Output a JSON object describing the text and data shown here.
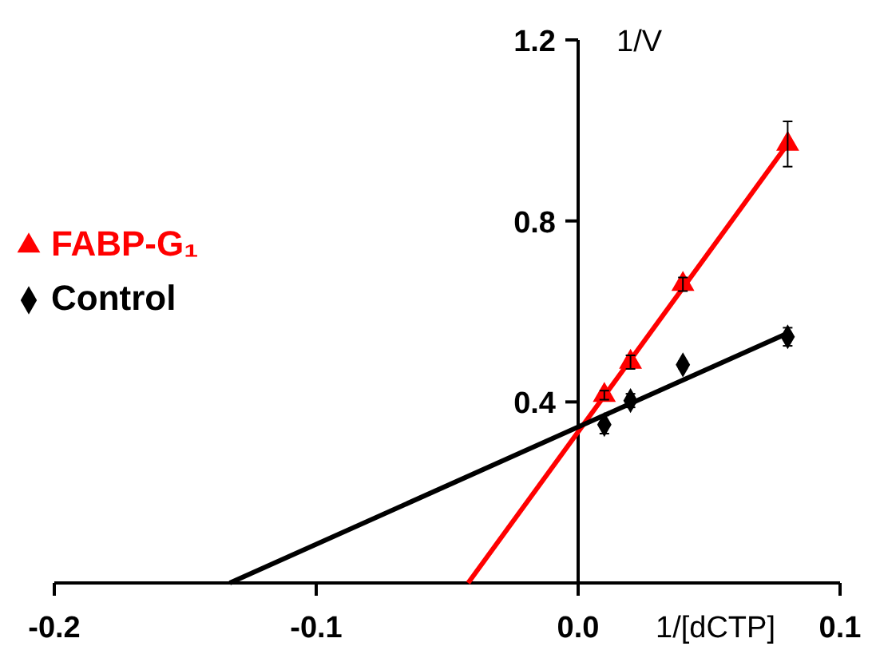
{
  "chart_data": {
    "type": "scatter",
    "xlabel": "1/[dCTP]",
    "ylabel": "1/V",
    "xlim": [
      -0.2,
      0.1
    ],
    "xticks": [
      -0.2,
      -0.1,
      {
        "value": 0,
        "label": "0.0"
      },
      0.1
    ],
    "ylim": [
      0,
      1.2
    ],
    "yticks": [
      0.4,
      0.8,
      1.2
    ],
    "legend": "left",
    "grid": false,
    "series": [
      {
        "name": "FABP-G₁",
        "marker": "triangle",
        "color": "#ff0000",
        "x": [
          0.01,
          0.02,
          0.04,
          0.08
        ],
        "values": [
          0.415,
          0.488,
          0.66,
          0.97
        ],
        "errors": [
          0.01,
          0.015,
          0.015,
          0.05
        ]
      },
      {
        "name": "Control",
        "marker": "diamond",
        "color": "#000000",
        "x": [
          0.01,
          0.02,
          0.04,
          0.08
        ],
        "values": [
          0.35,
          0.403,
          0.482,
          0.544
        ],
        "errors": [
          0.02,
          0.015,
          0.008,
          0.02
        ]
      },
      {
        "type": "line",
        "color": "#ff0000",
        "x": [
          -0.042,
          0.08
        ],
        "values": [
          0,
          0.97
        ]
      },
      {
        "type": "line",
        "color": "#000000",
        "x": [
          -0.133,
          0.08
        ],
        "values": [
          0,
          0.552
        ]
      }
    ]
  }
}
